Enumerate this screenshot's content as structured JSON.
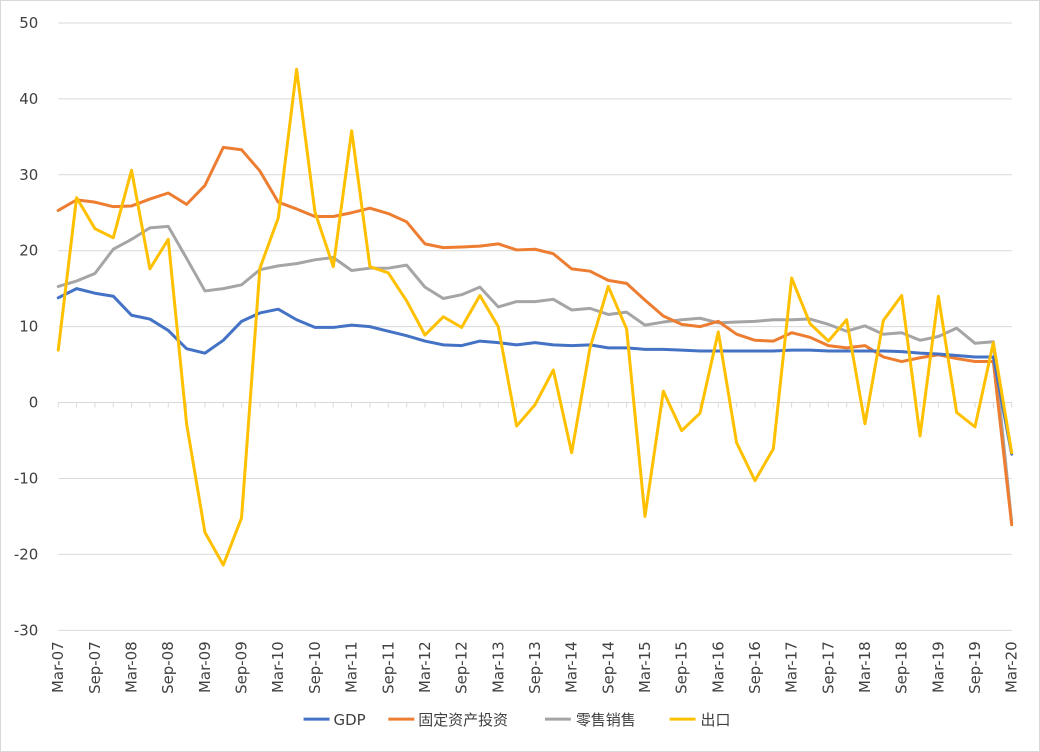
{
  "chart_data": {
    "type": "line",
    "title": "",
    "xlabel": "",
    "ylabel": "",
    "ylim": [
      -30,
      50
    ],
    "yticks": [
      -30,
      -20,
      -10,
      0,
      10,
      20,
      30,
      40,
      50
    ],
    "grid": "horizontal",
    "legend_position": "bottom",
    "x": [
      "Mar-07",
      "Jun-07",
      "Sep-07",
      "Dec-07",
      "Mar-08",
      "Jun-08",
      "Sep-08",
      "Dec-08",
      "Mar-09",
      "Jun-09",
      "Sep-09",
      "Dec-09",
      "Mar-10",
      "Jun-10",
      "Sep-10",
      "Dec-10",
      "Mar-11",
      "Jun-11",
      "Sep-11",
      "Dec-11",
      "Mar-12",
      "Jun-12",
      "Sep-12",
      "Dec-12",
      "Mar-13",
      "Jun-13",
      "Sep-13",
      "Dec-13",
      "Mar-14",
      "Jun-14",
      "Sep-14",
      "Dec-14",
      "Mar-15",
      "Jun-15",
      "Sep-15",
      "Dec-15",
      "Mar-16",
      "Jun-16",
      "Sep-16",
      "Dec-16",
      "Mar-17",
      "Jun-17",
      "Sep-17",
      "Dec-17",
      "Mar-18",
      "Jun-18",
      "Sep-18",
      "Dec-18",
      "Mar-19",
      "Jun-19",
      "Sep-19",
      "Dec-19",
      "Mar-20"
    ],
    "x_tick_labels": [
      "Mar-07",
      "Sep-07",
      "Mar-08",
      "Sep-08",
      "Mar-09",
      "Sep-09",
      "Mar-10",
      "Sep-10",
      "Mar-11",
      "Sep-11",
      "Mar-12",
      "Sep-12",
      "Mar-13",
      "Sep-13",
      "Mar-14",
      "Sep-14",
      "Mar-15",
      "Sep-15",
      "Mar-16",
      "Sep-16",
      "Mar-17",
      "Sep-17",
      "Mar-18",
      "Sep-18",
      "Mar-19",
      "Sep-19",
      "Mar-20"
    ],
    "series": [
      {
        "name": "GDP",
        "color": "#4472C4",
        "values": [
          13.8,
          15.0,
          14.4,
          14.0,
          11.5,
          11.0,
          9.5,
          7.1,
          6.5,
          8.2,
          10.7,
          11.8,
          12.3,
          10.9,
          9.9,
          9.9,
          10.2,
          10.0,
          9.4,
          8.8,
          8.1,
          7.6,
          7.5,
          8.1,
          7.9,
          7.6,
          7.9,
          7.6,
          7.5,
          7.6,
          7.2,
          7.2,
          7.0,
          7.0,
          6.9,
          6.8,
          6.8,
          6.8,
          6.8,
          6.8,
          6.9,
          6.9,
          6.8,
          6.8,
          6.8,
          6.8,
          6.7,
          6.5,
          6.4,
          6.2,
          6.0,
          6.0,
          -6.8
        ]
      },
      {
        "name": "固定资产投资",
        "color": "#ED7D31",
        "values": [
          25.3,
          26.7,
          26.4,
          25.8,
          25.9,
          26.8,
          27.6,
          26.1,
          28.6,
          33.6,
          33.3,
          30.5,
          26.4,
          25.5,
          24.5,
          24.5,
          25.0,
          25.6,
          24.9,
          23.8,
          20.9,
          20.4,
          20.5,
          20.6,
          20.9,
          20.1,
          20.2,
          19.6,
          17.6,
          17.3,
          16.1,
          15.7,
          13.5,
          11.4,
          10.3,
          10.0,
          10.7,
          9.0,
          8.2,
          8.1,
          9.2,
          8.6,
          7.5,
          7.2,
          7.5,
          6.0,
          5.4,
          5.9,
          6.3,
          5.8,
          5.4,
          5.4,
          -16.1
        ]
      },
      {
        "name": "零售销售",
        "color": "#A5A5A5",
        "values": [
          15.3,
          16.0,
          17.0,
          20.2,
          21.5,
          23.0,
          23.2,
          19.0,
          14.7,
          15.0,
          15.5,
          17.5,
          18.0,
          18.3,
          18.8,
          19.1,
          17.4,
          17.7,
          17.7,
          18.1,
          15.2,
          13.7,
          14.2,
          15.2,
          12.6,
          13.3,
          13.3,
          13.6,
          12.2,
          12.4,
          11.6,
          11.9,
          10.2,
          10.6,
          10.9,
          11.1,
          10.5,
          10.6,
          10.7,
          10.9,
          10.9,
          11.0,
          10.3,
          9.4,
          10.1,
          9.0,
          9.2,
          8.2,
          8.7,
          9.8,
          7.8,
          8.0,
          -15.8
        ]
      },
      {
        "name": "出口",
        "color": "#FFC000",
        "values": [
          6.9,
          27.0,
          22.9,
          21.7,
          30.6,
          17.6,
          21.5,
          -2.8,
          -17.1,
          -21.4,
          -15.2,
          17.7,
          24.3,
          43.9,
          25.1,
          17.9,
          35.8,
          17.9,
          17.1,
          13.4,
          8.9,
          11.3,
          9.9,
          14.1,
          10.0,
          -3.1,
          -0.3,
          4.3,
          -6.6,
          7.2,
          15.3,
          9.7,
          -15.0,
          1.5,
          -3.7,
          -1.4,
          9.3,
          -5.3,
          -10.3,
          -6.1,
          16.4,
          10.4,
          8.1,
          10.9,
          -2.8,
          10.8,
          14.1,
          -4.4,
          14.0,
          -1.3,
          -3.2,
          7.9,
          -6.6
        ]
      }
    ]
  }
}
